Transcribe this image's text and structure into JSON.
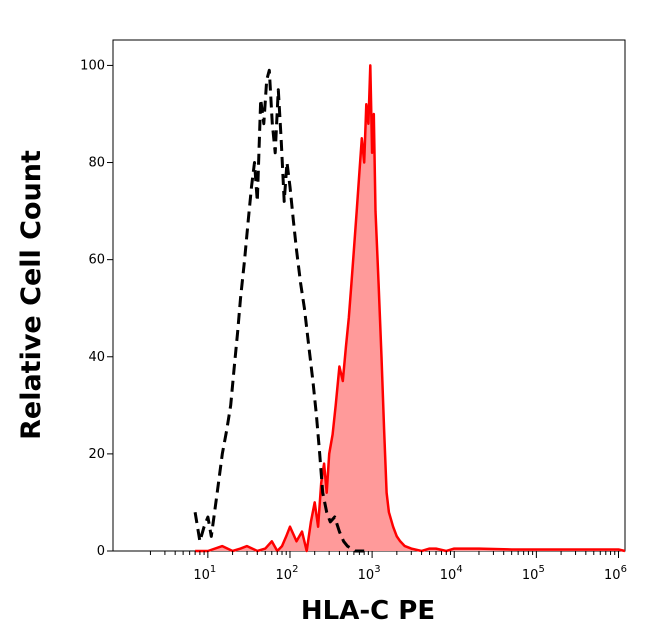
{
  "chart_data": {
    "type": "area",
    "xlabel": "HLA-C PE",
    "ylabel": "Relative Cell Count",
    "x_scale": "log",
    "xlim": [
      0.7,
      1200000
    ],
    "ylim": [
      0,
      104
    ],
    "x_ticks": [
      {
        "value": 10,
        "base": "10",
        "exp": "1"
      },
      {
        "value": 100,
        "base": "10",
        "exp": "2"
      },
      {
        "value": 1000,
        "base": "10",
        "exp": "3"
      },
      {
        "value": 10000,
        "base": "10",
        "exp": "4"
      },
      {
        "value": 100000,
        "base": "10",
        "exp": "5"
      },
      {
        "value": 1000000,
        "base": "10",
        "exp": "6"
      }
    ],
    "y_ticks": [
      0,
      20,
      40,
      60,
      80,
      100
    ],
    "grid": false,
    "series": [
      {
        "style": "dashed",
        "color": "#000000",
        "fill": "none",
        "x": [
          7,
          8,
          9,
          10,
          11,
          13,
          15,
          17,
          19,
          21,
          23,
          25,
          28,
          31,
          34,
          37,
          40,
          44,
          48,
          52,
          56,
          61,
          66,
          72,
          78,
          85,
          92,
          100,
          110,
          120,
          135,
          150,
          170,
          190,
          210,
          230,
          250,
          280,
          310,
          350,
          400,
          450,
          500,
          560,
          620,
          700,
          800
        ],
        "y": [
          8,
          2,
          5,
          7,
          3,
          12,
          20,
          25,
          30,
          38,
          45,
          52,
          60,
          68,
          75,
          80,
          72,
          93,
          88,
          97,
          99,
          88,
          82,
          95,
          85,
          72,
          80,
          75,
          68,
          62,
          55,
          50,
          42,
          35,
          28,
          20,
          12,
          8,
          6,
          7,
          4,
          2,
          1,
          0.5,
          0,
          0,
          0
        ]
      },
      {
        "style": "solid",
        "color": "#ff0000",
        "fill": "#ff9a9a",
        "x": [
          7,
          10,
          15,
          20,
          25,
          30,
          40,
          50,
          60,
          70,
          80,
          90,
          100,
          120,
          140,
          160,
          180,
          200,
          220,
          240,
          260,
          280,
          300,
          330,
          360,
          400,
          440,
          480,
          520,
          560,
          600,
          650,
          700,
          750,
          800,
          850,
          900,
          950,
          1000,
          1050,
          1100,
          1200,
          1300,
          1400,
          1500,
          1600,
          1800,
          2000,
          2200,
          2500,
          3000,
          4000,
          5000,
          6000,
          8000,
          10000,
          20000,
          50000,
          100000,
          200000,
          500000,
          1000000,
          1200000
        ],
        "y": [
          0,
          0,
          1,
          0,
          0.5,
          1,
          0,
          0.5,
          2,
          0,
          1,
          3,
          5,
          2,
          4,
          0,
          6,
          10,
          5,
          14,
          18,
          12,
          20,
          24,
          30,
          38,
          35,
          42,
          48,
          55,
          62,
          70,
          78,
          85,
          80,
          92,
          88,
          100,
          82,
          90,
          70,
          55,
          40,
          25,
          12,
          8,
          5,
          3,
          2,
          1,
          0.5,
          0,
          0.5,
          0.5,
          0,
          0.5,
          0.5,
          0.3,
          0.3,
          0.3,
          0.3,
          0.3,
          0
        ]
      }
    ]
  }
}
